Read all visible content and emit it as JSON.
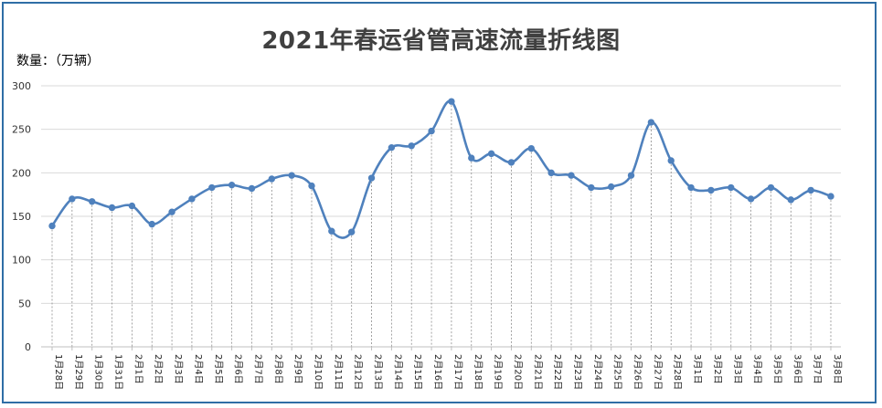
{
  "chart_data": {
    "type": "line",
    "title": "2021年春运省管高速流量折线图",
    "ylabel": "数量：（万辆）",
    "xlabel": "",
    "ylim": [
      0,
      300
    ],
    "yticks": [
      0,
      50,
      100,
      150,
      200,
      250,
      300
    ],
    "grid": "horizontal",
    "drop_lines": true,
    "smooth": true,
    "line_color": "#4f81bd",
    "categories": [
      "1月28日",
      "1月29日",
      "1月30日",
      "1月31日",
      "2月1日",
      "2月2日",
      "2月3日",
      "2月4日",
      "2月5日",
      "2月6日",
      "2月7日",
      "2月8日",
      "2月9日",
      "2月10日",
      "2月11日",
      "2月12日",
      "2月13日",
      "2月14日",
      "2月15日",
      "2月16日",
      "2月17日",
      "2月18日",
      "2月19日",
      "2月20日",
      "2月21日",
      "2月22日",
      "2月23日",
      "2月24日",
      "2月25日",
      "2月26日",
      "2月27日",
      "2月28日",
      "3月1日",
      "3月2日",
      "3月3日",
      "3月4日",
      "3月5日",
      "3月6日",
      "3月7日",
      "3月8日"
    ],
    "values": [
      139,
      170,
      167,
      160,
      162,
      141,
      155,
      170,
      183,
      186,
      182,
      193,
      197,
      185,
      133,
      132,
      194,
      229,
      231,
      248,
      282,
      217,
      222,
      212,
      228,
      200,
      197,
      183,
      184,
      197,
      258,
      214,
      183,
      180,
      183,
      170,
      183,
      169,
      180,
      173
    ]
  }
}
